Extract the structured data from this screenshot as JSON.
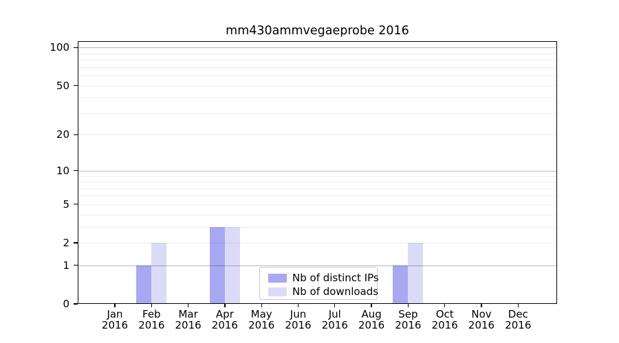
{
  "chart_data": {
    "type": "bar",
    "title": "mm430ammvegaeprobe 2016",
    "year": "2016",
    "categories": [
      "Jan",
      "Feb",
      "Mar",
      "Apr",
      "May",
      "Jun",
      "Jul",
      "Aug",
      "Sep",
      "Oct",
      "Nov",
      "Dec"
    ],
    "series": [
      {
        "name": "Nb of distinct IPs",
        "color": "#a8a8f2",
        "values": [
          0,
          1,
          0,
          3,
          0,
          0,
          0,
          0,
          1,
          0,
          0,
          0
        ]
      },
      {
        "name": "Nb of downloads",
        "color": "#dbdbf8",
        "values": [
          0,
          2,
          0,
          3,
          0,
          0,
          0,
          0,
          2,
          0,
          0,
          0
        ]
      }
    ],
    "yscale": "log1p",
    "ylim": [
      0,
      112
    ],
    "yticks": [
      0,
      1,
      2,
      5,
      10,
      20,
      50,
      100
    ],
    "major_gridlines": [
      1,
      10,
      100
    ],
    "minor_gridlines": [
      2,
      3,
      4,
      5,
      6,
      7,
      8,
      9,
      20,
      30,
      40,
      50,
      60,
      70,
      80,
      90
    ],
    "grid": "horizontal",
    "legend_position": "lower center"
  }
}
